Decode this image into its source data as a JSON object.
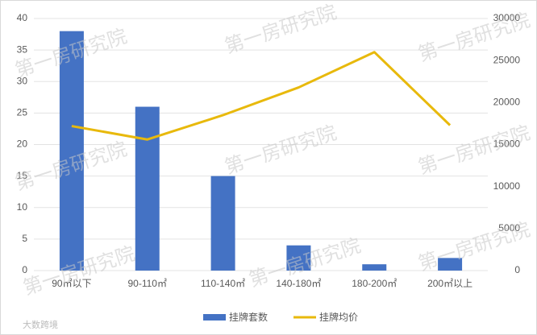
{
  "chart_data": {
    "type": "bar",
    "categories": [
      "90㎡以下",
      "90-110㎡",
      "110-140㎡",
      "140-180㎡",
      "180-200㎡",
      "200㎡以上"
    ],
    "series": [
      {
        "name": "挂牌套数",
        "type": "bar",
        "color": "#4472c4",
        "values": [
          38,
          26,
          15,
          4,
          1,
          2
        ]
      },
      {
        "name": "挂牌均价",
        "type": "line",
        "axis": "y2",
        "color": "#e8b90c",
        "values": [
          17200,
          15600,
          18500,
          21800,
          26000,
          17300
        ]
      }
    ],
    "ylim": [
      0,
      40
    ],
    "yticks": [
      0,
      5,
      10,
      15,
      20,
      25,
      30,
      35,
      40
    ],
    "y2lim": [
      0,
      30000
    ],
    "y2ticks": [
      0,
      5000,
      10000,
      15000,
      20000,
      25000,
      30000
    ],
    "grid": true,
    "legend": "bottom",
    "watermark": "第一房研究院",
    "logo": "大数跨境"
  }
}
